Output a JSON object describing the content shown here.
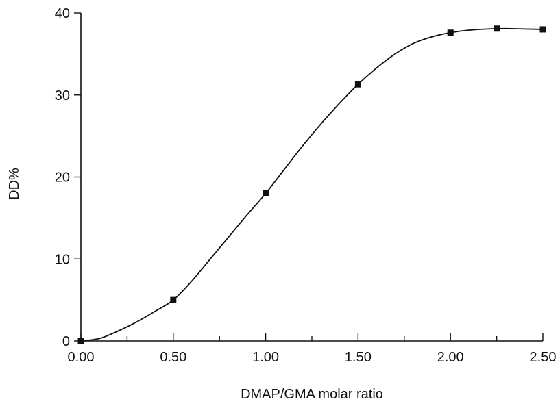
{
  "chart_data": {
    "type": "scatter",
    "xlabel": "DMAP/GMA molar ratio",
    "ylabel": "DD%",
    "xlim": [
      0,
      2.5
    ],
    "ylim": [
      0,
      40
    ],
    "x_ticks": [
      0.0,
      0.5,
      1.0,
      1.5,
      2.0,
      2.5
    ],
    "x_tick_labels": [
      "0.00",
      "0.50",
      "1.00",
      "1.50",
      "2.00",
      "2.50"
    ],
    "x_minor_ticks": [
      0.25,
      0.75,
      1.25,
      1.75,
      2.25
    ],
    "y_ticks": [
      0,
      10,
      20,
      30,
      40
    ],
    "y_tick_labels": [
      "0",
      "10",
      "20",
      "30",
      "40"
    ],
    "grid": false,
    "series": [
      {
        "marker": "square",
        "x": [
          0.0,
          0.5,
          1.0,
          1.5,
          2.0,
          2.25,
          2.5
        ],
        "y": [
          0.0,
          5.0,
          18.0,
          31.3,
          37.6,
          38.1,
          38.0
        ]
      }
    ],
    "fit_curve": {
      "x": [
        0.0,
        0.1,
        0.2,
        0.3,
        0.4,
        0.5,
        0.6,
        0.7,
        0.8,
        0.9,
        1.0,
        1.1,
        1.2,
        1.3,
        1.4,
        1.5,
        1.6,
        1.7,
        1.8,
        1.9,
        2.0,
        2.1,
        2.2,
        2.3,
        2.4,
        2.5
      ],
      "y": [
        0.0,
        0.3,
        1.2,
        2.3,
        3.6,
        5.0,
        7.3,
        10.0,
        12.7,
        15.4,
        18.0,
        20.9,
        23.8,
        26.5,
        29.0,
        31.3,
        33.3,
        35.0,
        36.3,
        37.1,
        37.6,
        37.9,
        38.05,
        38.1,
        38.05,
        38.0
      ]
    },
    "colors": {
      "ink": "#111111",
      "background": "#ffffff"
    }
  }
}
